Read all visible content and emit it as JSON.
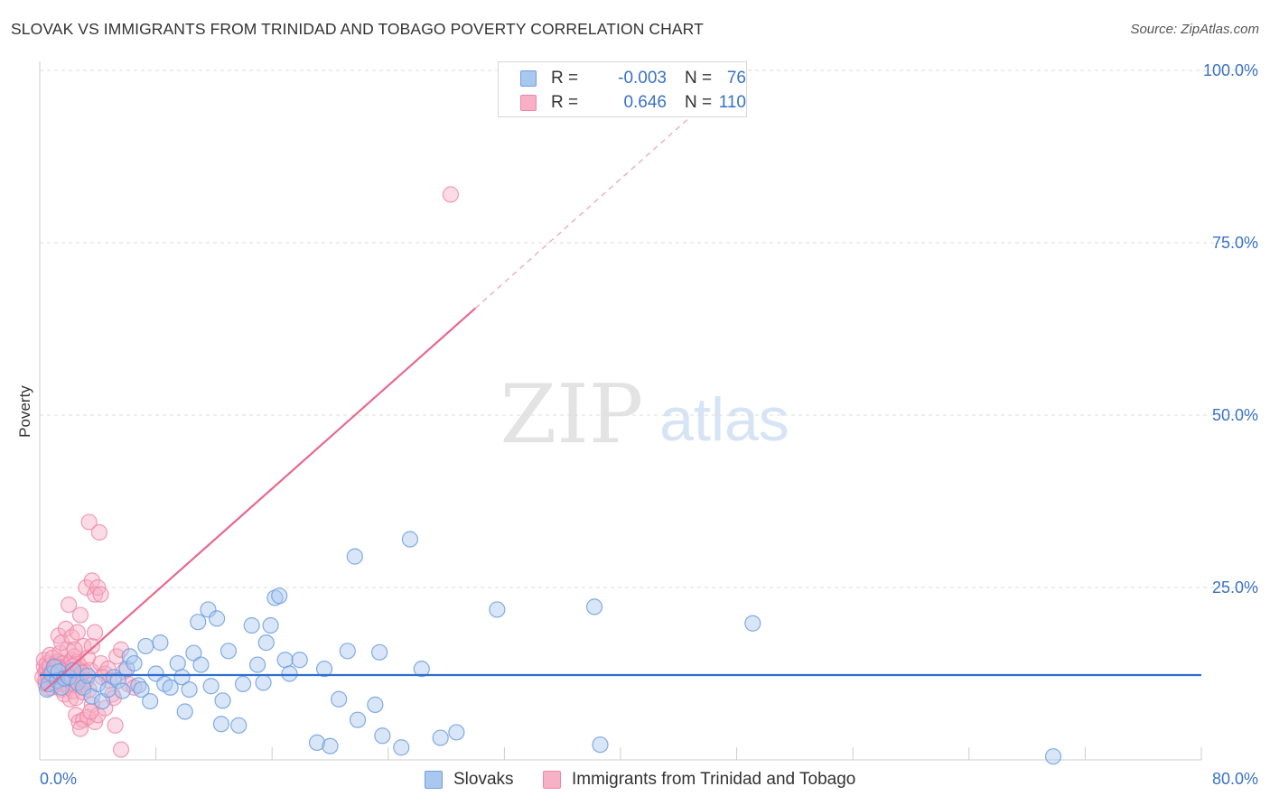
{
  "title": "SLOVAK VS IMMIGRANTS FROM TRINIDAD AND TOBAGO POVERTY CORRELATION CHART",
  "source": "Source: ZipAtlas.com",
  "watermark": {
    "zip": "ZIP",
    "atlas": "atlas"
  },
  "colors": {
    "blue_fill": "#a9c8ef",
    "blue_stroke": "#6f9ede",
    "blue_line": "#2f6fcd",
    "pink_fill": "#f7b0c6",
    "pink_stroke": "#ee86a8",
    "pink_line": "#e8688f",
    "axis_text": "#3a72c4",
    "grid": "#dddddd"
  },
  "legend": {
    "r_label": "R =",
    "n_label": "N =",
    "rows": [
      {
        "series": "Slovaks",
        "r": "-0.003",
        "n": "76"
      },
      {
        "series": "Immigrants from Trinidad and Tobago",
        "r": "0.646",
        "n": "110"
      }
    ]
  },
  "chart_data": {
    "type": "scatter",
    "title": "SLOVAK VS IMMIGRANTS FROM TRINIDAD AND TOBAGO POVERTY CORRELATION CHART",
    "xlabel": "",
    "ylabel": "Poverty",
    "xlim": [
      0,
      80
    ],
    "ylim": [
      0,
      100
    ],
    "x_tick_labels": {
      "min": "0.0%",
      "max": "80.0%"
    },
    "y_ticks": [
      25,
      50,
      75,
      100
    ],
    "y_tick_labels": [
      "25.0%",
      "50.0%",
      "75.0%",
      "100.0%"
    ],
    "grid": true,
    "legend_position": "top-center",
    "series": [
      {
        "name": "Slovaks",
        "color": "#a9c8ef",
        "trend": {
          "x": [
            0,
            80
          ],
          "y": [
            12.3,
            12.3
          ]
        },
        "points": [
          [
            0.5,
            10.2
          ],
          [
            0.6,
            11
          ],
          [
            0.8,
            12.5
          ],
          [
            1.0,
            13.5
          ],
          [
            1.2,
            11.5
          ],
          [
            1.3,
            12.8
          ],
          [
            1.5,
            10.5
          ],
          [
            1.7,
            11.8
          ],
          [
            2.0,
            12.0
          ],
          [
            2.3,
            13.0
          ],
          [
            2.6,
            11.2
          ],
          [
            3.0,
            10.5
          ],
          [
            3.3,
            12.2
          ],
          [
            3.6,
            9.2
          ],
          [
            4.0,
            11.0
          ],
          [
            4.3,
            8.5
          ],
          [
            4.7,
            10.2
          ],
          [
            5.1,
            12.0
          ],
          [
            5.4,
            11.5
          ],
          [
            5.7,
            10.0
          ],
          [
            6.0,
            13.2
          ],
          [
            6.2,
            15.0
          ],
          [
            6.5,
            14.0
          ],
          [
            6.8,
            10.8
          ],
          [
            7.0,
            10.2
          ],
          [
            7.3,
            16.5
          ],
          [
            7.6,
            8.5
          ],
          [
            8.0,
            12.5
          ],
          [
            8.3,
            17.0
          ],
          [
            8.6,
            11.0
          ],
          [
            9.0,
            10.5
          ],
          [
            9.5,
            14.0
          ],
          [
            9.8,
            12.0
          ],
          [
            10.0,
            7.0
          ],
          [
            10.3,
            10.2
          ],
          [
            10.6,
            15.5
          ],
          [
            10.9,
            20.0
          ],
          [
            11.1,
            13.8
          ],
          [
            11.6,
            21.8
          ],
          [
            11.8,
            10.7
          ],
          [
            12.2,
            20.5
          ],
          [
            12.5,
            5.2
          ],
          [
            12.6,
            8.6
          ],
          [
            13.0,
            15.8
          ],
          [
            13.7,
            5.0
          ],
          [
            14.0,
            11.0
          ],
          [
            14.6,
            19.5
          ],
          [
            15.0,
            13.8
          ],
          [
            15.4,
            11.2
          ],
          [
            15.6,
            17.0
          ],
          [
            15.9,
            19.5
          ],
          [
            16.2,
            23.5
          ],
          [
            16.5,
            23.8
          ],
          [
            16.9,
            14.5
          ],
          [
            17.2,
            12.5
          ],
          [
            17.9,
            14.5
          ],
          [
            19.1,
            2.5
          ],
          [
            19.6,
            13.2
          ],
          [
            20.0,
            2.0
          ],
          [
            20.6,
            8.8
          ],
          [
            21.2,
            15.8
          ],
          [
            21.7,
            29.5
          ],
          [
            21.9,
            5.8
          ],
          [
            23.1,
            8.0
          ],
          [
            23.4,
            15.6
          ],
          [
            23.6,
            3.5
          ],
          [
            24.9,
            1.8
          ],
          [
            25.5,
            32.0
          ],
          [
            26.3,
            13.2
          ],
          [
            27.6,
            3.2
          ],
          [
            28.7,
            4.0
          ],
          [
            31.5,
            21.8
          ],
          [
            38.2,
            22.2
          ],
          [
            38.6,
            2.2
          ],
          [
            49.1,
            19.8
          ],
          [
            69.8,
            0.5
          ]
        ]
      },
      {
        "name": "Immigrants from Trinidad and Tobago",
        "color": "#f7b0c6",
        "trend": {
          "x": [
            0.3,
            30.0
          ],
          "y": [
            10.0,
            65.5
          ]
        },
        "trend_extension": {
          "x": [
            30.0,
            46.0
          ],
          "y": [
            65.5,
            95.5
          ]
        },
        "points": [
          [
            0.2,
            12
          ],
          [
            0.3,
            13.5
          ],
          [
            0.3,
            14.5
          ],
          [
            0.4,
            11
          ],
          [
            0.4,
            12.8
          ],
          [
            0.5,
            13.2
          ],
          [
            0.5,
            14.0
          ],
          [
            0.6,
            11.8
          ],
          [
            0.6,
            12.2
          ],
          [
            0.7,
            13.7
          ],
          [
            0.7,
            15.2
          ],
          [
            0.8,
            10.5
          ],
          [
            0.8,
            12.0
          ],
          [
            0.9,
            13.0
          ],
          [
            0.9,
            14.8
          ],
          [
            1.0,
            11.2
          ],
          [
            1.0,
            12.5
          ],
          [
            1.1,
            13.8
          ],
          [
            1.1,
            10.8
          ],
          [
            1.2,
            12.0
          ],
          [
            1.2,
            14.2
          ],
          [
            1.3,
            11.5
          ],
          [
            1.3,
            13.0
          ],
          [
            1.4,
            15.5
          ],
          [
            1.4,
            12.2
          ],
          [
            1.5,
            10.2
          ],
          [
            1.5,
            13.5
          ],
          [
            1.6,
            11.0
          ],
          [
            1.6,
            14.0
          ],
          [
            1.7,
            12.5
          ],
          [
            1.7,
            9.5
          ],
          [
            1.8,
            13.2
          ],
          [
            1.8,
            11.8
          ],
          [
            1.9,
            16.0
          ],
          [
            1.9,
            12.0
          ],
          [
            2.0,
            10.5
          ],
          [
            2.0,
            13.8
          ],
          [
            2.1,
            12.2
          ],
          [
            2.1,
            8.8
          ],
          [
            2.2,
            14.5
          ],
          [
            2.2,
            11.2
          ],
          [
            2.3,
            12.8
          ],
          [
            2.3,
            10.0
          ],
          [
            2.4,
            13.0
          ],
          [
            2.4,
            15.0
          ],
          [
            2.5,
            11.5
          ],
          [
            2.5,
            9.0
          ],
          [
            2.6,
            12.0
          ],
          [
            2.6,
            14.2
          ],
          [
            2.7,
            10.8
          ],
          [
            2.8,
            13.5
          ],
          [
            2.8,
            12.2
          ],
          [
            2.9,
            11.0
          ],
          [
            3.0,
            16.5
          ],
          [
            3.0,
            9.8
          ],
          [
            3.1,
            12.8
          ],
          [
            3.2,
            11.5
          ],
          [
            3.3,
            14.8
          ],
          [
            3.4,
            10.2
          ],
          [
            3.5,
            13.0
          ],
          [
            1.3,
            18.0
          ],
          [
            1.5,
            17.0
          ],
          [
            1.8,
            19.0
          ],
          [
            2.0,
            22.5
          ],
          [
            2.2,
            17.8
          ],
          [
            2.4,
            16.0
          ],
          [
            2.6,
            18.5
          ],
          [
            2.8,
            21.0
          ],
          [
            3.2,
            25.0
          ],
          [
            3.6,
            26.0
          ],
          [
            3.8,
            24.0
          ],
          [
            4.0,
            25.0
          ],
          [
            3.4,
            34.5
          ],
          [
            4.1,
            33.0
          ],
          [
            4.2,
            24.0
          ],
          [
            2.5,
            6.5
          ],
          [
            2.7,
            5.5
          ],
          [
            3.0,
            5.8
          ],
          [
            3.3,
            6.2
          ],
          [
            3.6,
            8.0
          ],
          [
            3.8,
            5.5
          ],
          [
            4.0,
            6.5
          ],
          [
            4.5,
            7.5
          ],
          [
            5.2,
            5.0
          ],
          [
            2.8,
            4.5
          ],
          [
            3.5,
            7.0
          ],
          [
            3.6,
            16.5
          ],
          [
            3.8,
            18.5
          ],
          [
            4.2,
            14.0
          ],
          [
            4.5,
            12.5
          ],
          [
            4.7,
            13.2
          ],
          [
            5.0,
            9.5
          ],
          [
            5.3,
            15.0
          ],
          [
            5.8,
            12.8
          ],
          [
            6.1,
            11.0
          ],
          [
            6.5,
            10.5
          ],
          [
            5.6,
            16.0
          ],
          [
            4.3,
            12.0
          ],
          [
            4.8,
            11.5
          ],
          [
            5.1,
            9.0
          ],
          [
            5.6,
            1.5
          ],
          [
            28.3,
            82.0
          ],
          [
            0.4,
            11.6
          ],
          [
            0.6,
            10.4
          ],
          [
            0.9,
            12.7
          ],
          [
            1.2,
            13.4
          ],
          [
            1.6,
            12.9
          ],
          [
            2.0,
            11.9
          ],
          [
            2.3,
            13.6
          ],
          [
            2.9,
            12.6
          ]
        ]
      }
    ]
  }
}
